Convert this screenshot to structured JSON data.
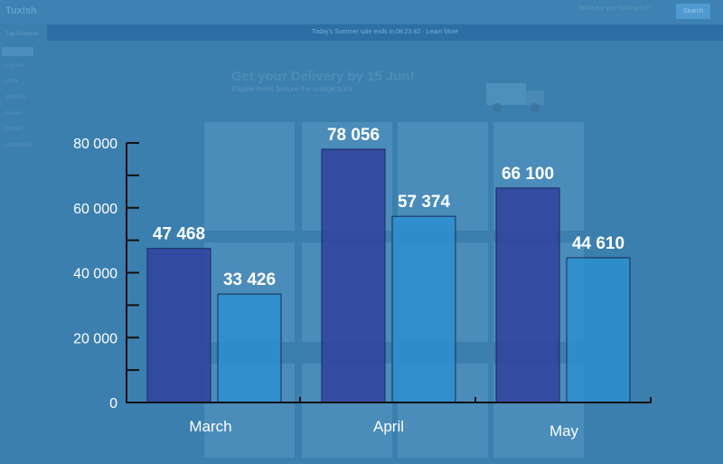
{
  "page": {
    "logo": "Tuxish",
    "search_placeholder": "What are you looking for?",
    "search_button": "Search",
    "promo_text": "Today's Summer sale ends in 08:23:42 · Learn More",
    "sidebar_heading": "Top Features",
    "sidebar_items": [
      "Popular",
      "Explore",
      "Local",
      "Wish list",
      "Recent",
      "Brands",
      "Categories"
    ],
    "headline": "Get your Delivery by 15 Jun!",
    "subline": "Eligible items feature the orange truck"
  },
  "colors": {
    "series1": "#2f3f9e",
    "series2": "#2b8fd0",
    "axis": "#111111",
    "label": "#ffffff"
  },
  "chart_data": {
    "type": "bar",
    "categories": [
      "March",
      "April",
      "May"
    ],
    "series": [
      {
        "values": [
          47468,
          78056,
          66100
        ]
      },
      {
        "values": [
          33426,
          57374,
          44610
        ]
      }
    ],
    "value_labels": [
      [
        "47 468",
        "78 056",
        "66 100"
      ],
      [
        "33 426",
        "57 374",
        "44 610"
      ]
    ],
    "yticks": [
      0,
      20000,
      40000,
      60000,
      80000
    ],
    "ytick_labels": [
      "0",
      "20 000",
      "40 000",
      "60 000",
      "80 000"
    ],
    "ylim": [
      0,
      80000
    ],
    "title": "",
    "xlabel": "",
    "ylabel": "",
    "grid": false
  }
}
